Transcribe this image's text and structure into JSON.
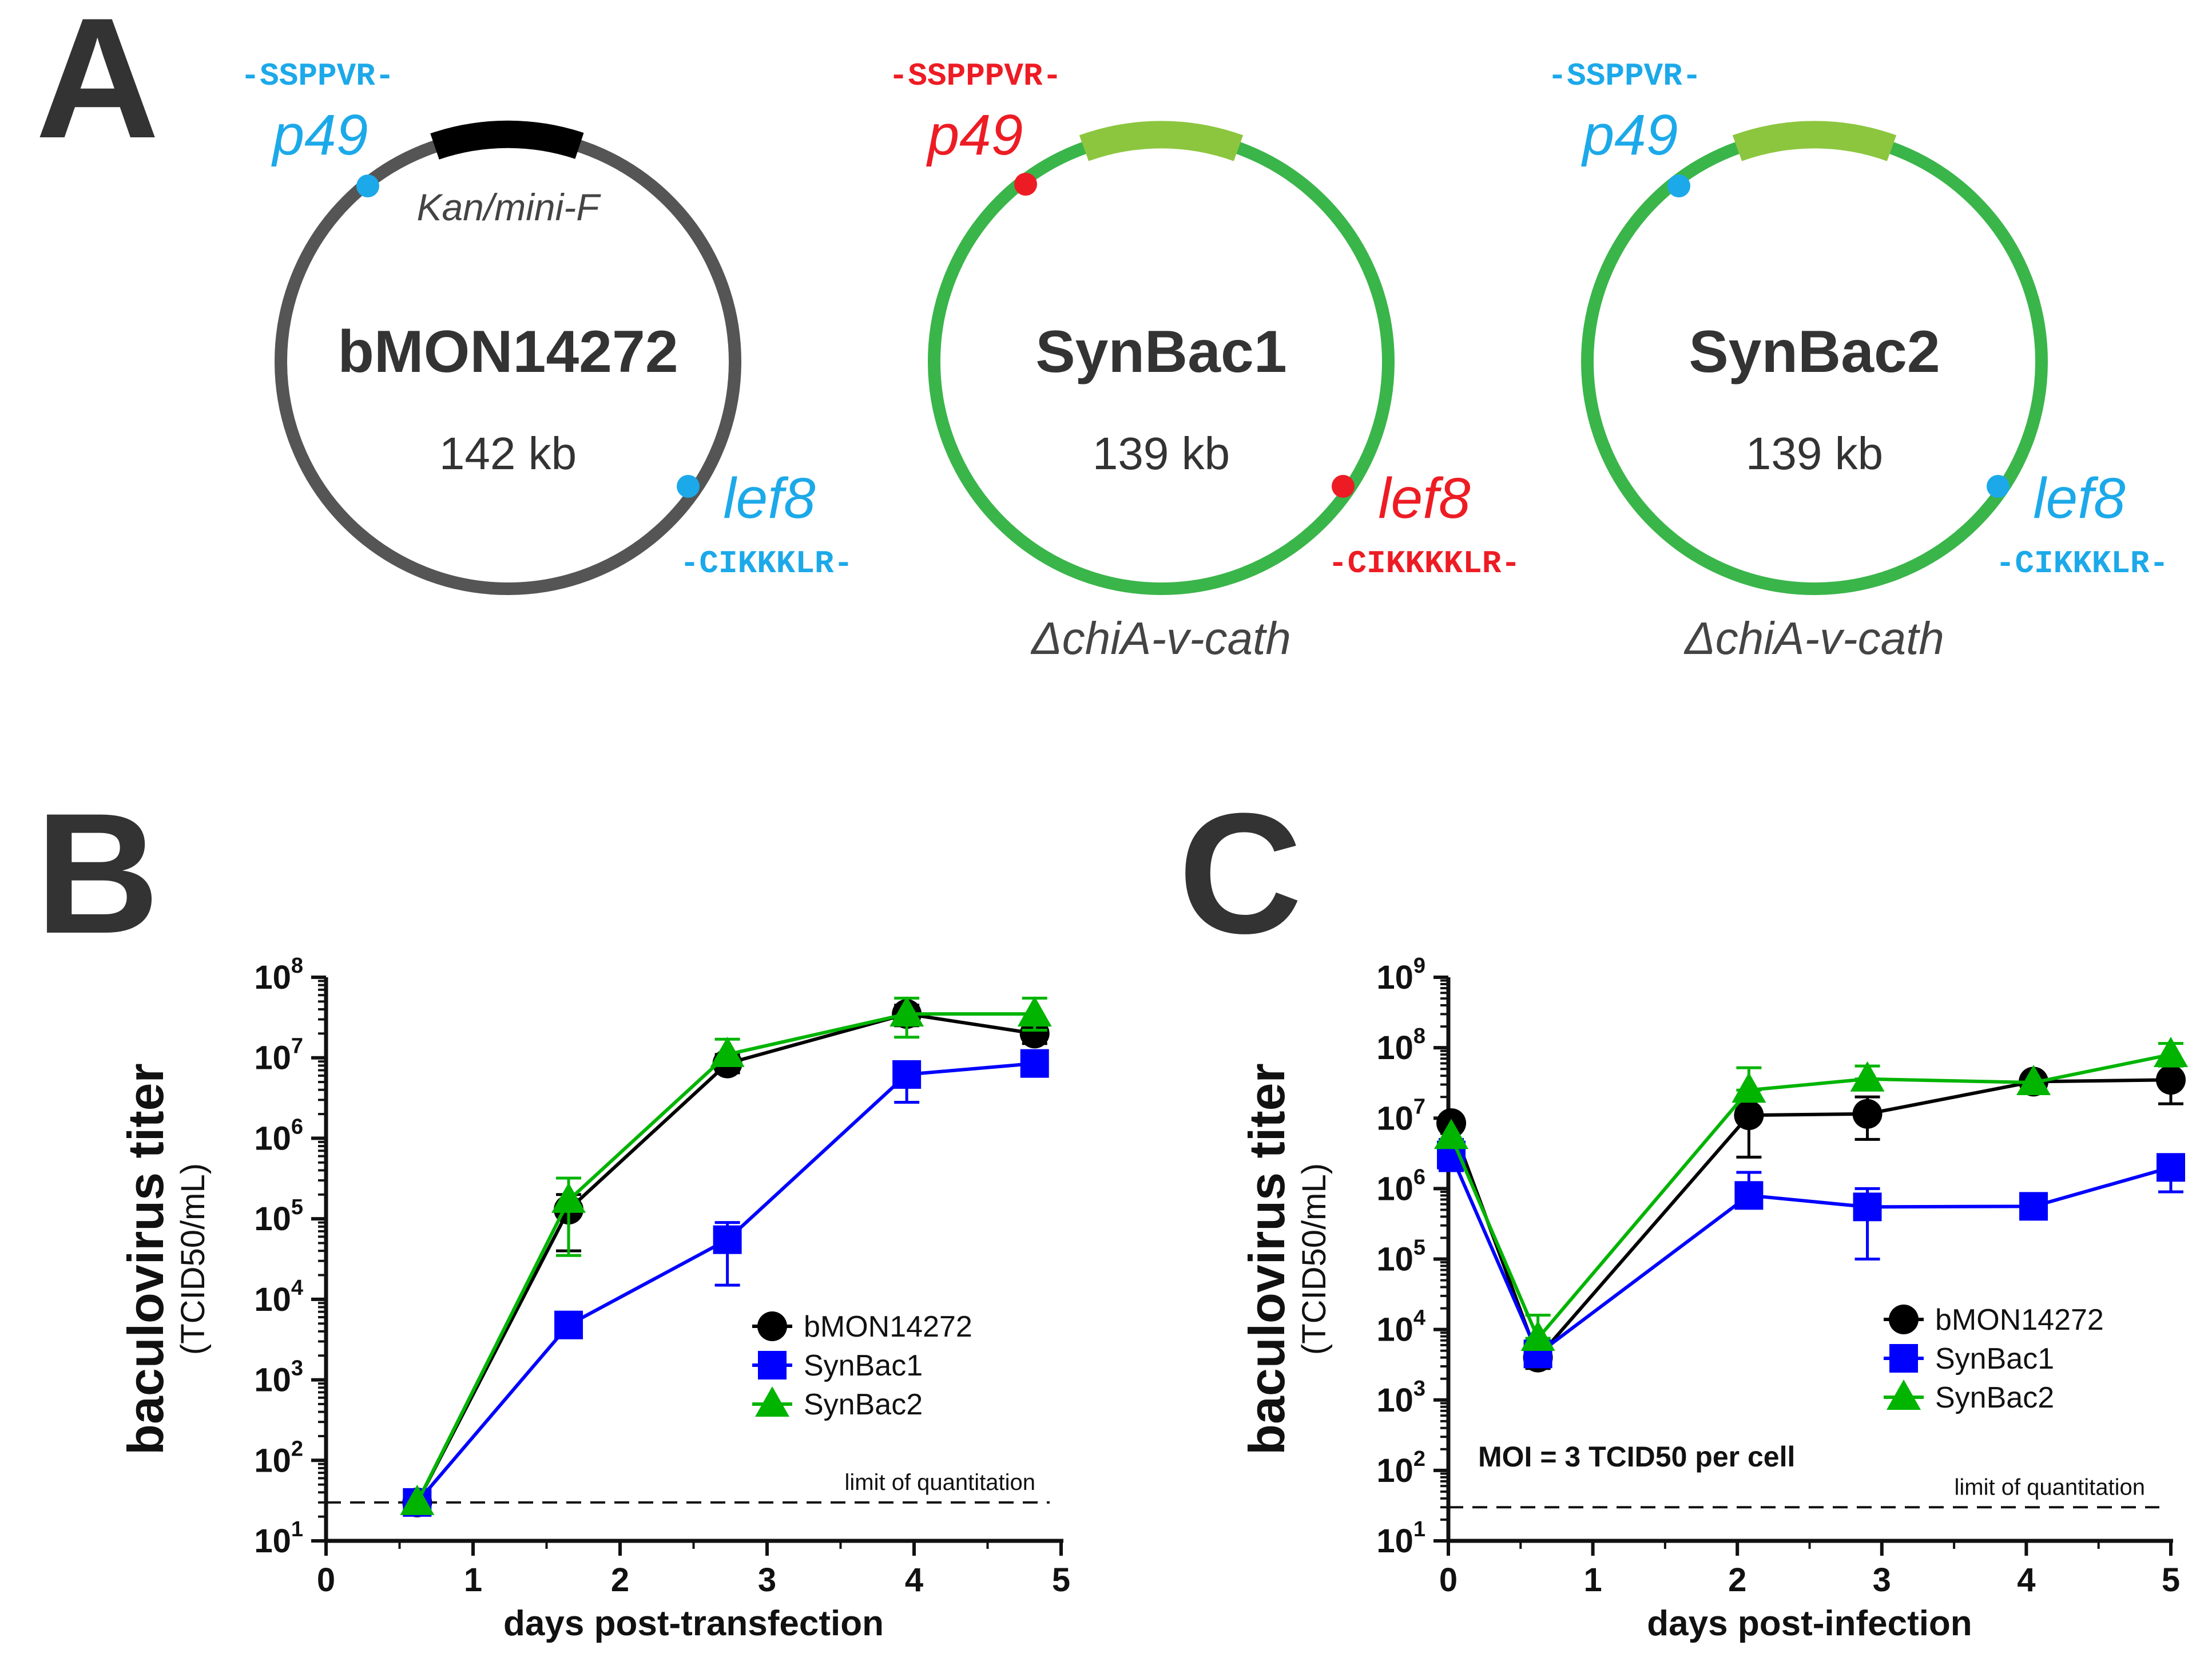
{
  "panel_a": {
    "label": "A",
    "plasmids": [
      {
        "name": "bMON14272",
        "size": "142 kb",
        "marker": "Kan/mini-F",
        "deletion": "",
        "p49_label": "p49",
        "p49_seq": "-SSPPVR-",
        "lef8_label": "lef8",
        "lef8_seq": "-CIKKKLR-",
        "ring_color": "#555555",
        "arc_color": "#000000",
        "site_color": "#1ca9e9"
      },
      {
        "name": "SynBac1",
        "size": "139 kb",
        "marker": "",
        "deletion": "ΔchiA-v-cath",
        "p49_label": "p49",
        "p49_seq": "-SSPPPVR-",
        "lef8_label": "lef8",
        "lef8_seq": "-CIKKKKLR-",
        "ring_color": "#3ab54a",
        "arc_color": "#8cc63f",
        "site_color": "#ed1c24"
      },
      {
        "name": "SynBac2",
        "size": "139 kb",
        "marker": "",
        "deletion": "ΔchiA-v-cath",
        "p49_label": "p49",
        "p49_seq": "-SSPPVR-",
        "lef8_label": "lef8",
        "lef8_seq": "-CIKKKLR-",
        "ring_color": "#3ab54a",
        "arc_color": "#8cc63f",
        "site_color": "#1ca9e9"
      }
    ]
  },
  "chart_data": [
    {
      "panel": "B",
      "type": "line",
      "xlabel": "days post-transfection",
      "ylabel": "baculovirus titer",
      "ylabel_sub": "(TCID50/mL)",
      "yscale": "log",
      "xlim": [
        0,
        5
      ],
      "ylim_exp": [
        1,
        8
      ],
      "xticks": [
        "0",
        "1",
        "2",
        "3",
        "4",
        "5"
      ],
      "loq": 30,
      "loq_label": "limit of quantitation",
      "annotation": "",
      "series": [
        {
          "name": "bMON14272",
          "color": "#000000",
          "marker": "circle",
          "x": [
            0.62,
            1.65,
            2.73,
            3.95,
            4.82
          ],
          "y": [
            30,
            130000,
            8500000,
            35000000,
            20000000
          ],
          "err_lo": [
            30,
            40000,
            6500000,
            25000000,
            15000000
          ],
          "err_hi": [
            30,
            200000,
            11000000,
            45000000,
            26000000
          ]
        },
        {
          "name": "SynBac1",
          "color": "#0000ff",
          "marker": "square",
          "x": [
            0.62,
            1.65,
            2.73,
            3.95,
            4.82
          ],
          "y": [
            30,
            4800,
            55000,
            6200000,
            8500000
          ],
          "err_lo": [
            30,
            4800,
            15000,
            2800000,
            8500000
          ],
          "err_hi": [
            30,
            4800,
            90000,
            8500000,
            9500000
          ]
        },
        {
          "name": "SynBac2",
          "color": "#00b400",
          "marker": "triangle",
          "x": [
            0.62,
            1.65,
            2.73,
            3.95,
            4.82
          ],
          "y": [
            30,
            170000,
            11000000,
            35000000,
            35000000
          ],
          "err_lo": [
            30,
            35000,
            8500000,
            18000000,
            22000000
          ],
          "err_hi": [
            30,
            320000,
            17000000,
            55000000,
            55000000
          ]
        }
      ]
    },
    {
      "panel": "C",
      "type": "line",
      "xlabel": "days post-infection",
      "ylabel": "baculovirus titer",
      "ylabel_sub": "(TCID50/mL)",
      "yscale": "log",
      "xlim": [
        0,
        5
      ],
      "ylim_exp": [
        1,
        9
      ],
      "xticks": [
        "0",
        "1",
        "2",
        "3",
        "4",
        "5"
      ],
      "loq": 30,
      "loq_label": "limit of quantitation",
      "annotation": "MOI = 3 TCID50 per cell",
      "series": [
        {
          "name": "bMON14272",
          "color": "#000000",
          "marker": "circle",
          "x": [
            0.02,
            0.62,
            2.08,
            2.9,
            4.05,
            5.0
          ],
          "y": [
            8500000,
            4000,
            11000000,
            11500000,
            33000000,
            35000000
          ],
          "err_lo": [
            8500000,
            2800,
            2800000,
            5000000,
            33000000,
            16000000
          ],
          "err_hi": [
            8500000,
            4000,
            11000000,
            20000000,
            33000000,
            55000000
          ]
        },
        {
          "name": "SynBac1",
          "color": "#0000ff",
          "marker": "square",
          "x": [
            0.02,
            0.62,
            2.08,
            2.9,
            4.05,
            5.0
          ],
          "y": [
            3000000,
            4500,
            800000,
            550000,
            560000,
            2000000
          ],
          "err_lo": [
            1800000,
            4500,
            800000,
            100000,
            560000,
            900000
          ],
          "err_hi": [
            5000000,
            5500,
            1700000,
            1000000,
            560000,
            3000000
          ]
        },
        {
          "name": "SynBac2",
          "color": "#00b400",
          "marker": "triangle",
          "x": [
            0.02,
            0.62,
            2.08,
            2.9,
            4.05,
            5.0
          ],
          "y": [
            5500000,
            7500,
            25000000,
            36000000,
            32000000,
            80000000
          ],
          "err_lo": [
            5500000,
            7500,
            25000000,
            36000000,
            32000000,
            55000000
          ],
          "err_hi": [
            5500000,
            16000,
            52000000,
            55000000,
            32000000,
            115000000
          ]
        }
      ]
    }
  ]
}
